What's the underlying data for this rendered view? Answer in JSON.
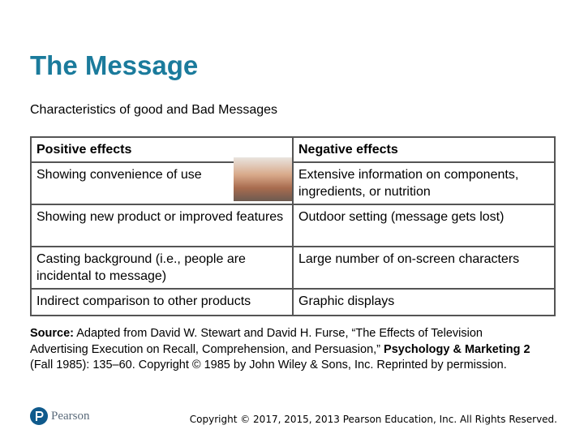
{
  "header": {
    "title": "The Message",
    "subtitle": "Characteristics of good and Bad Messages"
  },
  "table": {
    "header": [
      "Positive effects",
      "Negative effects"
    ],
    "rows": [
      [
        "Showing convenience of use",
        "Extensive information on components, ingredients, or nutrition"
      ],
      [
        "Showing new product or improved features",
        "Outdoor setting (message gets lost)"
      ],
      [
        "Casting background (i.e., people are incidental to message)",
        "Large number of on-screen characters"
      ],
      [
        "Indirect comparison to other products",
        "Graphic displays"
      ]
    ]
  },
  "source": {
    "label": "Source:",
    "text": "Adapted from David W. Stewart and David H. Furse, “The Effects of Television Advertising Execution on Recall, Comprehension, and Persuasion,”",
    "journal": "Psychology & Marketing 2",
    "rest": "(Fall 1985): 135–60. Copyright © 1985 by John Wiley & Sons, Inc. Reprinted by permission."
  },
  "footer": {
    "logo": "Pearson",
    "copyright": "Copyright © 2017, 2015, 2013 Pearson Education, Inc. All Rights Reserved."
  }
}
